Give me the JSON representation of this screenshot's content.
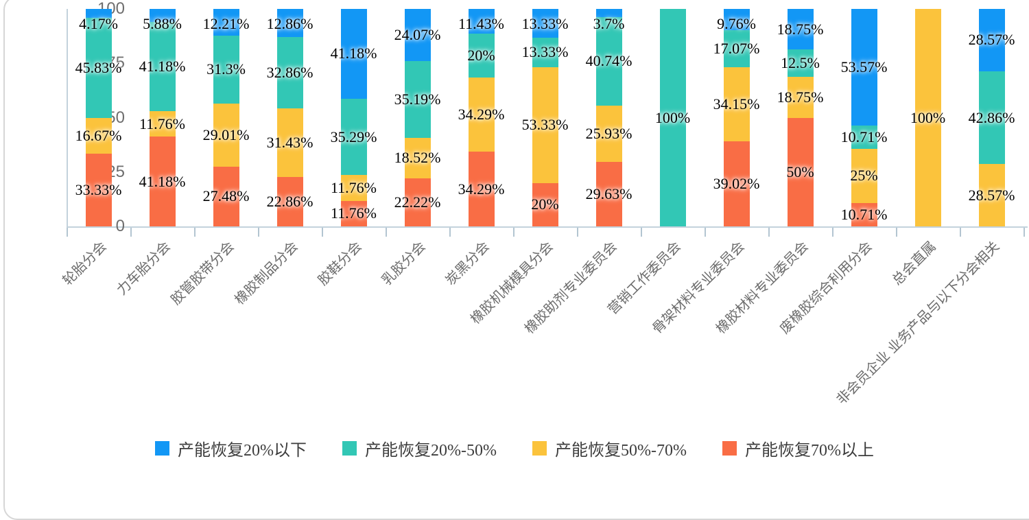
{
  "chart_data": {
    "type": "bar",
    "subtype": "stacked-100-percent",
    "title": "",
    "xlabel": "",
    "ylabel": "",
    "ylim": [
      0,
      100
    ],
    "y_ticks": [
      0,
      25,
      50,
      75,
      100
    ],
    "grid": false,
    "legend_position": "bottom",
    "categories": [
      "轮胎分会",
      "力车胎分会",
      "胶管胶带分会",
      "橡胶制品分会",
      "胶鞋分会",
      "乳胶分会",
      "炭黑分会",
      "橡胶机械模具分会",
      "橡胶助剂专业委员会",
      "营销工作委员会",
      "骨架材料专业委员会",
      "橡胶材料专业委员会",
      "废橡胶综合利用分会",
      "总会直属",
      "非会员企业 业务产品与以下分会相关"
    ],
    "series": [
      {
        "name": "产能恢复70%以上",
        "color": "#f96d45",
        "stack_order": 1,
        "values": [
          33.33,
          41.18,
          27.48,
          22.86,
          11.76,
          22.22,
          34.29,
          20,
          29.63,
          0,
          39.02,
          50,
          10.71,
          0,
          0
        ]
      },
      {
        "name": "产能恢复50%-70%",
        "color": "#fbc33c",
        "stack_order": 2,
        "values": [
          16.67,
          11.76,
          29.01,
          31.43,
          11.76,
          18.52,
          34.29,
          53.33,
          25.93,
          0,
          34.15,
          18.75,
          25,
          100,
          28.57
        ]
      },
      {
        "name": "产能恢复20%-50%",
        "color": "#32c7b5",
        "stack_order": 3,
        "values": [
          45.83,
          41.18,
          31.3,
          32.86,
          35.29,
          35.19,
          20,
          13.33,
          40.74,
          100,
          17.07,
          12.5,
          10.71,
          0,
          42.86
        ]
      },
      {
        "name": "产能恢复20%以下",
        "color": "#1297f5",
        "stack_order": 4,
        "values": [
          4.17,
          5.88,
          12.21,
          12.86,
          41.18,
          24.07,
          11.43,
          13.33,
          3.7,
          0,
          9.76,
          18.75,
          53.57,
          0,
          28.57
        ]
      }
    ],
    "legend": [
      {
        "label": "产能恢复20%以下",
        "color": "#1297f5"
      },
      {
        "label": "产能恢复20%-50%",
        "color": "#32c7b5"
      },
      {
        "label": "产能恢复50%-70%",
        "color": "#fbc33c"
      },
      {
        "label": "产能恢复70%以上",
        "color": "#f96d45"
      }
    ]
  },
  "colors": {
    "axis_line": "#c3d2dc",
    "axis_tick": "#b3c5d1",
    "y_tick_text": "#6e6e6e",
    "x_tick_text": "#6c6c6c",
    "data_label_text": "#000000",
    "card_border": "#d6d6d6",
    "background": "#ffffff"
  }
}
